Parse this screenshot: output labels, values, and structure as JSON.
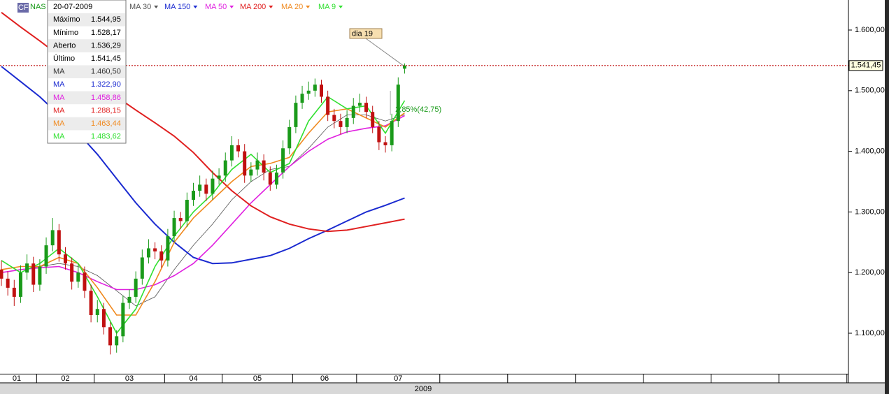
{
  "chart_data": {
    "type": "candlestick",
    "instrument": "NAS",
    "instrument_badge": "CFD",
    "up_color": "#1a9a1a",
    "down_color": "#c01010",
    "categories": [
      "01",
      null,
      null,
      null,
      null,
      null,
      "02",
      null,
      null,
      null,
      null,
      null,
      null,
      null,
      null,
      "03",
      null,
      null,
      null,
      null,
      null,
      null,
      null,
      null,
      null,
      null,
      "04",
      null,
      null,
      null,
      null,
      null,
      null,
      null,
      null,
      "05",
      null,
      null,
      null,
      null,
      null,
      null,
      null,
      null,
      null,
      null,
      "06",
      null,
      null,
      null,
      null,
      null,
      null,
      null,
      null,
      null,
      "07",
      null,
      null,
      null,
      null,
      null,
      null,
      null
    ],
    "x_axis_year": "2009",
    "open": [
      1205,
      1190,
      1175,
      1160,
      1200,
      1215,
      1180,
      1210,
      1245,
      1270,
      1230,
      1215,
      1185,
      1200,
      1170,
      1130,
      1140,
      1110,
      1080,
      1095,
      1150,
      1160,
      1190,
      1225,
      1240,
      1235,
      1220,
      1260,
      1290,
      1285,
      1320,
      1335,
      1345,
      1330,
      1355,
      1360,
      1385,
      1410,
      1400,
      1360,
      1370,
      1385,
      1365,
      1345,
      1365,
      1405,
      1440,
      1480,
      1495,
      1500,
      1510,
      1490,
      1460,
      1450,
      1440,
      1455,
      1475,
      1480,
      1465,
      1440,
      1415,
      1410,
      1450,
      1536.29
    ],
    "high": [
      1220,
      1202,
      1188,
      1212,
      1230,
      1226,
      1222,
      1258,
      1290,
      1280,
      1242,
      1225,
      1214,
      1210,
      1180,
      1155,
      1150,
      1118,
      1105,
      1162,
      1172,
      1202,
      1238,
      1255,
      1250,
      1245,
      1272,
      1302,
      1300,
      1332,
      1348,
      1360,
      1355,
      1368,
      1372,
      1398,
      1425,
      1420,
      1412,
      1382,
      1398,
      1395,
      1375,
      1378,
      1418,
      1452,
      1492,
      1508,
      1515,
      1520,
      1518,
      1500,
      1470,
      1462,
      1468,
      1488,
      1495,
      1490,
      1475,
      1450,
      1425,
      1462,
      1522,
      1544.95
    ],
    "low": [
      1178,
      1162,
      1145,
      1150,
      1188,
      1168,
      1170,
      1198,
      1235,
      1218,
      1205,
      1172,
      1175,
      1158,
      1118,
      1118,
      1098,
      1065,
      1068,
      1085,
      1140,
      1150,
      1180,
      1215,
      1222,
      1208,
      1210,
      1250,
      1272,
      1275,
      1310,
      1325,
      1318,
      1320,
      1345,
      1350,
      1375,
      1390,
      1348,
      1350,
      1360,
      1352,
      1335,
      1338,
      1355,
      1395,
      1430,
      1470,
      1485,
      1490,
      1480,
      1450,
      1438,
      1428,
      1430,
      1445,
      1465,
      1455,
      1430,
      1402,
      1398,
      1400,
      1440,
      1528.17
    ],
    "close": [
      1190,
      1175,
      1160,
      1200,
      1215,
      1180,
      1210,
      1245,
      1270,
      1230,
      1215,
      1185,
      1200,
      1170,
      1130,
      1140,
      1110,
      1080,
      1095,
      1150,
      1160,
      1190,
      1225,
      1240,
      1235,
      1220,
      1260,
      1290,
      1285,
      1320,
      1335,
      1345,
      1330,
      1355,
      1360,
      1385,
      1410,
      1400,
      1360,
      1370,
      1385,
      1365,
      1345,
      1365,
      1405,
      1440,
      1480,
      1495,
      1500,
      1510,
      1490,
      1460,
      1450,
      1440,
      1455,
      1475,
      1480,
      1465,
      1440,
      1415,
      1410,
      1450,
      1510,
      1541.45
    ],
    "series": [
      {
        "name": "MA 30",
        "color": "#555555",
        "width": 0.8,
        "x": [
          0,
          3,
          6,
          9,
          12,
          15,
          18,
          21,
          24,
          27,
          30,
          33,
          36,
          39,
          42,
          45,
          48,
          51,
          54,
          57,
          60,
          63
        ],
        "values": [
          1200,
          1205,
          1210,
          1215,
          1210,
          1195,
          1170,
          1145,
          1160,
          1205,
          1245,
          1280,
          1320,
          1350,
          1370,
          1375,
          1405,
          1440,
          1460,
          1460,
          1450,
          1460.5
        ]
      },
      {
        "name": "MA 150",
        "color": "#1a2ad0",
        "width": 2,
        "x": [
          0,
          3,
          6,
          9,
          12,
          15,
          18,
          21,
          24,
          27,
          30,
          33,
          36,
          39,
          42,
          45,
          48,
          51,
          54,
          57,
          60,
          63
        ],
        "values": [
          1540,
          1515,
          1490,
          1460,
          1430,
          1395,
          1355,
          1315,
          1280,
          1250,
          1225,
          1215,
          1216,
          1222,
          1228,
          1240,
          1256,
          1270,
          1285,
          1300,
          1311,
          1322.9
        ]
      },
      {
        "name": "MA 50",
        "color": "#e020e0",
        "width": 1.6,
        "x": [
          0,
          3,
          6,
          9,
          12,
          15,
          18,
          21,
          24,
          27,
          30,
          33,
          36,
          39,
          42,
          45,
          48,
          51,
          54,
          57,
          60,
          63
        ],
        "values": [
          1200,
          1205,
          1208,
          1210,
          1200,
          1185,
          1172,
          1172,
          1180,
          1195,
          1215,
          1245,
          1280,
          1315,
          1345,
          1375,
          1400,
          1420,
          1432,
          1438,
          1442,
          1458.86
        ]
      },
      {
        "name": "MA 200",
        "color": "#e02020",
        "width": 2,
        "x": [
          0,
          3,
          6,
          9,
          12,
          15,
          18,
          21,
          24,
          27,
          30,
          33,
          36,
          39,
          42,
          45,
          48,
          51,
          54,
          57,
          60,
          63
        ],
        "values": [
          1629,
          1605,
          1582,
          1558,
          1535,
          1512,
          1490,
          1468,
          1447,
          1425,
          1398,
          1365,
          1335,
          1310,
          1292,
          1280,
          1272,
          1268,
          1270,
          1276,
          1282,
          1288.15
        ]
      },
      {
        "name": "MA 20",
        "color": "#f08a20",
        "width": 1.6,
        "x": [
          0,
          3,
          6,
          9,
          12,
          15,
          18,
          21,
          24,
          27,
          30,
          33,
          36,
          39,
          42,
          45,
          48,
          51,
          54,
          57,
          60,
          63
        ],
        "values": [
          1205,
          1210,
          1210,
          1225,
          1215,
          1175,
          1130,
          1130,
          1185,
          1250,
          1290,
          1320,
          1350,
          1375,
          1380,
          1390,
          1430,
          1465,
          1470,
          1455,
          1440,
          1463.44
        ]
      },
      {
        "name": "MA 9",
        "color": "#30e030",
        "width": 1.6,
        "x": [
          0,
          3,
          6,
          9,
          12,
          15,
          18,
          21,
          24,
          27,
          30,
          33,
          36,
          39,
          42,
          45,
          48,
          51,
          54,
          57,
          60,
          63
        ],
        "values": [
          1220,
          1200,
          1215,
          1240,
          1215,
          1160,
          1100,
          1140,
          1210,
          1260,
          1300,
          1330,
          1370,
          1395,
          1365,
          1380,
          1450,
          1490,
          1470,
          1475,
          1430,
          1483.62
        ]
      }
    ],
    "ylim": [
      1100,
      1600
    ],
    "yticks": [
      {
        "value": 1100,
        "label": "1.100,00"
      },
      {
        "value": 1200,
        "label": "1.200,00"
      },
      {
        "value": 1300,
        "label": "1.300,00"
      },
      {
        "value": 1400,
        "label": "1.400,00"
      },
      {
        "value": 1500,
        "label": "1.500,00"
      },
      {
        "value": 1600,
        "label": "1.600,00"
      }
    ],
    "last_price": {
      "value": 1541.45,
      "label": "1.541,45",
      "color": "#c01010"
    },
    "annotations": [
      {
        "text": "dia 19",
        "index": 63,
        "value": 1541.45
      },
      {
        "text": "2,85%(42,75)",
        "index": 61,
        "value": 1462,
        "color": "#1a9a1a"
      }
    ],
    "info_box": {
      "date": "20-07-2009",
      "rows": [
        {
          "label": "Máximo",
          "value": "1.544,95",
          "color": "#000000"
        },
        {
          "label": "Mínimo",
          "value": "1.528,17",
          "color": "#000000"
        },
        {
          "label": "Aberto",
          "value": "1.536,29",
          "color": "#000000"
        },
        {
          "label": "Último",
          "value": "1.541,45",
          "color": "#000000"
        },
        {
          "label": "MA",
          "value": "1.460,50",
          "color": "#333333"
        },
        {
          "label": "MA",
          "value": "1.322,90",
          "color": "#1a2ad0"
        },
        {
          "label": "MA",
          "value": "1.458,86",
          "color": "#e020e0"
        },
        {
          "label": "MA",
          "value": "1.288,15",
          "color": "#e02020"
        },
        {
          "label": "MA",
          "value": "1.463,44",
          "color": "#f08a20"
        },
        {
          "label": "MA",
          "value": "1.483,62",
          "color": "#30e030"
        }
      ]
    }
  }
}
